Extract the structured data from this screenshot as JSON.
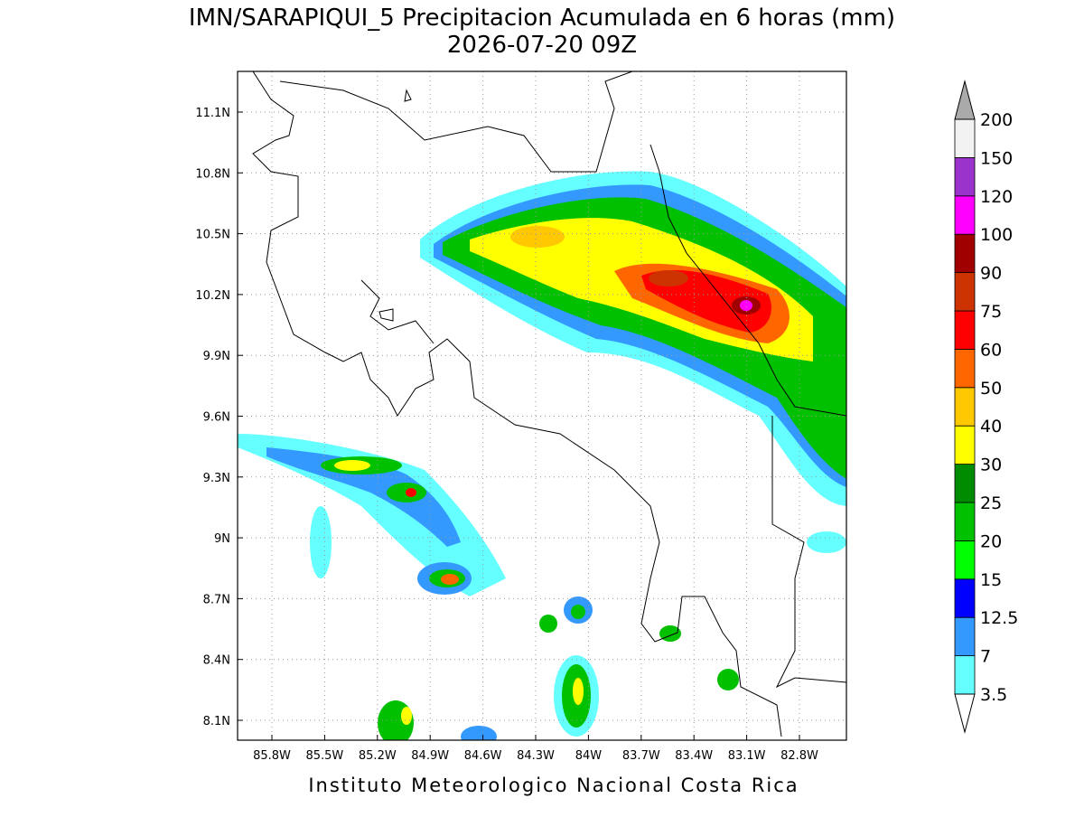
{
  "header": {
    "title": "IMN/SARAPIQUI_5 Precipitacion Acumulada en 6 horas (mm)",
    "subtitle": "2026-07-20 09Z"
  },
  "map": {
    "lon_ticks": [
      "85.8W",
      "85.5W",
      "85.2W",
      "84.9W",
      "84.6W",
      "84.3W",
      "84W",
      "83.7W",
      "83.4W",
      "83.1W",
      "82.8W"
    ],
    "lat_ticks": [
      "11.1N",
      "10.8N",
      "10.5N",
      "10.2N",
      "9.9N",
      "9.6N",
      "9.3N",
      "9N",
      "8.7N",
      "8.4N",
      "8.1N"
    ]
  },
  "colorbar": {
    "levels": [
      3.5,
      7,
      12.5,
      15,
      20,
      25,
      30,
      40,
      50,
      60,
      75,
      90,
      100,
      120,
      150,
      200
    ],
    "colors": [
      "#66ffff",
      "#3399ff",
      "#0000ff",
      "#00ff00",
      "#00c000",
      "#008c00",
      "#ffff00",
      "#ffc800",
      "#ff6600",
      "#ff0000",
      "#cc3300",
      "#a00000",
      "#ff00ff",
      "#9933cc",
      "#f2f2f2"
    ],
    "under_color": "#ffffff",
    "over_color": "#aaaaaa"
  },
  "footer": "Instituto Meteorologico Nacional Costa Rica"
}
